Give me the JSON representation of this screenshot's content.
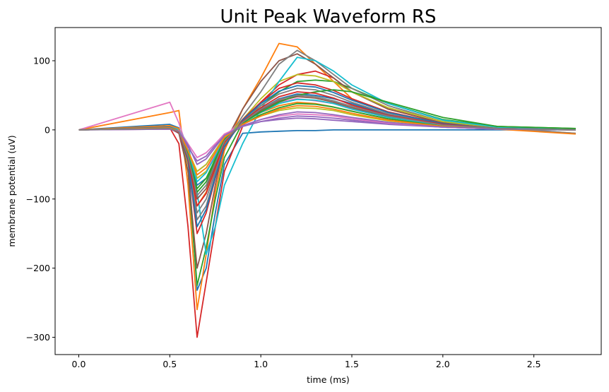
{
  "chart_data": {
    "type": "line",
    "title": "Unit Peak Waveform RS",
    "xlabel": "time (ms)",
    "ylabel": "membrane potential (uV)",
    "xlim": [
      -0.13,
      2.87
    ],
    "ylim": [
      -325,
      148
    ],
    "xticks": [
      0.0,
      0.5,
      1.0,
      1.5,
      2.0,
      2.5
    ],
    "xtick_labels": [
      "0.0",
      "0.5",
      "1.0",
      "1.5",
      "2.0",
      "2.5"
    ],
    "yticks": [
      -300,
      -200,
      -100,
      0,
      100
    ],
    "ytick_labels": [
      "−300",
      "−200",
      "−100",
      "0",
      "100"
    ],
    "grid": false,
    "legend": "none",
    "x": [
      0.0,
      0.5,
      0.55,
      0.6,
      0.65,
      0.7,
      0.75,
      0.8,
      0.9,
      1.0,
      1.1,
      1.2,
      1.3,
      1.4,
      1.5,
      1.7,
      2.0,
      2.3,
      2.73
    ],
    "series": [
      {
        "color": "#1f77b4",
        "values": [
          0,
          8,
          3,
          -40,
          -232,
          -200,
          -120,
          -50,
          -5,
          -3,
          -2,
          -1,
          -1,
          0,
          0,
          0,
          0,
          0,
          0
        ]
      },
      {
        "color": "#ff7f0e",
        "values": [
          0,
          25,
          28,
          -80,
          -260,
          -180,
          -90,
          -30,
          30,
          75,
          125,
          120,
          95,
          70,
          45,
          25,
          10,
          3,
          -5
        ]
      },
      {
        "color": "#2ca02c",
        "values": [
          0,
          5,
          0,
          -60,
          -225,
          -170,
          -100,
          -40,
          10,
          35,
          55,
          70,
          72,
          70,
          60,
          38,
          15,
          5,
          2
        ]
      },
      {
        "color": "#d62728",
        "values": [
          0,
          3,
          -20,
          -140,
          -300,
          -220,
          -140,
          -60,
          5,
          40,
          65,
          80,
          85,
          75,
          55,
          30,
          10,
          3,
          0
        ]
      },
      {
        "color": "#9467bd",
        "values": [
          0,
          2,
          -5,
          -40,
          -60,
          -50,
          -30,
          -10,
          5,
          12,
          15,
          17,
          16,
          14,
          12,
          8,
          4,
          1,
          0
        ]
      },
      {
        "color": "#8c564b",
        "values": [
          0,
          4,
          -5,
          -60,
          -200,
          -150,
          -80,
          -20,
          30,
          70,
          100,
          110,
          95,
          75,
          55,
          30,
          10,
          3,
          0
        ]
      },
      {
        "color": "#e377c2",
        "values": [
          0,
          40,
          10,
          -30,
          -70,
          -60,
          -35,
          -10,
          15,
          30,
          40,
          45,
          42,
          38,
          30,
          18,
          8,
          2,
          0
        ]
      },
      {
        "color": "#7f7f7f",
        "values": [
          0,
          5,
          0,
          -40,
          -120,
          -100,
          -60,
          -20,
          20,
          55,
          95,
          115,
          100,
          80,
          60,
          35,
          12,
          3,
          -5
        ]
      },
      {
        "color": "#bcbd22",
        "values": [
          0,
          3,
          -2,
          -30,
          -70,
          -60,
          -40,
          -15,
          15,
          45,
          70,
          80,
          78,
          70,
          55,
          32,
          12,
          3,
          0
        ]
      },
      {
        "color": "#17becf",
        "values": [
          0,
          5,
          0,
          -20,
          -90,
          -180,
          -140,
          -80,
          -20,
          30,
          70,
          105,
          100,
          85,
          65,
          38,
          14,
          4,
          0
        ]
      },
      {
        "color": "#1f77b4",
        "values": [
          0,
          2,
          -3,
          -30,
          -80,
          -70,
          -45,
          -15,
          10,
          30,
          45,
          52,
          50,
          45,
          38,
          22,
          8,
          2,
          0
        ]
      },
      {
        "color": "#ff7f0e",
        "values": [
          0,
          6,
          2,
          -50,
          -110,
          -90,
          -55,
          -20,
          10,
          25,
          35,
          40,
          38,
          33,
          27,
          16,
          6,
          1,
          0
        ]
      },
      {
        "color": "#2ca02c",
        "values": [
          0,
          2,
          -4,
          -35,
          -90,
          -75,
          -45,
          -15,
          8,
          22,
          32,
          38,
          37,
          33,
          27,
          16,
          6,
          1,
          0
        ]
      },
      {
        "color": "#d62728",
        "values": [
          0,
          3,
          -3,
          -45,
          -150,
          -120,
          -70,
          -25,
          15,
          40,
          60,
          68,
          65,
          57,
          45,
          26,
          9,
          2,
          0
        ]
      },
      {
        "color": "#9467bd",
        "values": [
          0,
          1,
          -2,
          -25,
          -45,
          -38,
          -22,
          -8,
          5,
          12,
          17,
          20,
          19,
          17,
          14,
          9,
          4,
          1,
          0
        ]
      },
      {
        "color": "#8c564b",
        "values": [
          0,
          2,
          -3,
          -35,
          -100,
          -85,
          -50,
          -18,
          10,
          28,
          42,
          48,
          46,
          40,
          32,
          19,
          7,
          2,
          0
        ]
      },
      {
        "color": "#e377c2",
        "values": [
          0,
          1,
          -1,
          -20,
          -40,
          -33,
          -20,
          -6,
          6,
          15,
          20,
          23,
          22,
          20,
          16,
          10,
          4,
          1,
          0
        ]
      },
      {
        "color": "#7f7f7f",
        "values": [
          0,
          3,
          -2,
          -40,
          -130,
          -110,
          -65,
          -22,
          12,
          35,
          52,
          60,
          58,
          50,
          40,
          23,
          8,
          2,
          0
        ]
      },
      {
        "color": "#bcbd22",
        "values": [
          0,
          2,
          -2,
          -30,
          -60,
          -50,
          -30,
          -10,
          8,
          20,
          28,
          32,
          31,
          28,
          22,
          13,
          5,
          1,
          0
        ]
      },
      {
        "color": "#17becf",
        "values": [
          0,
          2,
          -3,
          -30,
          -75,
          -62,
          -38,
          -12,
          10,
          25,
          38,
          44,
          43,
          38,
          30,
          18,
          7,
          2,
          0
        ]
      },
      {
        "color": "#1f77b4",
        "values": [
          0,
          4,
          -2,
          -45,
          -140,
          -115,
          -68,
          -24,
          14,
          38,
          56,
          64,
          62,
          54,
          43,
          25,
          9,
          2,
          0
        ]
      },
      {
        "color": "#2ca02c",
        "values": [
          0,
          2,
          -3,
          -35,
          -85,
          -70,
          -42,
          -14,
          10,
          26,
          40,
          50,
          55,
          58,
          55,
          40,
          18,
          5,
          2
        ]
      },
      {
        "color": "#d62728",
        "values": [
          0,
          2,
          -4,
          -40,
          -110,
          -92,
          -55,
          -18,
          12,
          32,
          48,
          55,
          53,
          46,
          36,
          21,
          8,
          2,
          0
        ]
      },
      {
        "color": "#ff7f0e",
        "values": [
          0,
          3,
          -2,
          -30,
          -65,
          -55,
          -33,
          -11,
          8,
          20,
          30,
          35,
          34,
          30,
          24,
          14,
          5,
          1,
          -6
        ]
      },
      {
        "color": "#9467bd",
        "values": [
          0,
          1,
          -2,
          -22,
          -50,
          -42,
          -25,
          -8,
          6,
          15,
          22,
          26,
          25,
          22,
          18,
          11,
          4,
          1,
          0
        ]
      },
      {
        "color": "#7f7f7f",
        "values": [
          0,
          2,
          -3,
          -38,
          -95,
          -80,
          -48,
          -16,
          11,
          30,
          44,
          50,
          48,
          42,
          34,
          20,
          7,
          2,
          0
        ]
      }
    ]
  }
}
